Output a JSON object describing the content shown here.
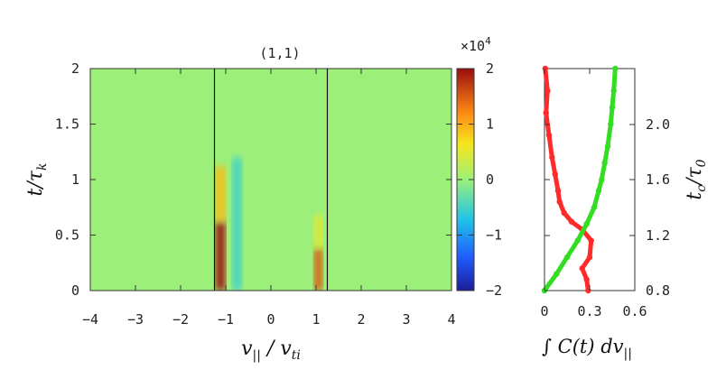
{
  "chart_data": [
    {
      "type": "heatmap",
      "title": "(1,1)",
      "xlabel_main": "v",
      "xlabel_main_sub": "||",
      "xlabel_div": " / v",
      "xlabel_div_sub": "ti",
      "ylabel_main": "t/τ",
      "ylabel_sub": "k",
      "xlim": [
        -4,
        4
      ],
      "ylim": [
        0,
        2
      ],
      "xticks": [
        "−4",
        "−3",
        "−2",
        "−1",
        "0",
        "1",
        "2",
        "3",
        "4"
      ],
      "yticks": [
        "0",
        "0.5",
        "1",
        "1.5",
        "2"
      ],
      "vlines_x": [
        -1.25,
        1.25
      ],
      "background_value": 0,
      "features": [
        {
          "x": -1.12,
          "y": 0.0,
          "w": 0.22,
          "h": 0.62,
          "value": 2.0
        },
        {
          "x": -1.12,
          "y": 0.62,
          "w": 0.22,
          "h": 0.5,
          "value": 0.9
        },
        {
          "x": -0.75,
          "y": 0.0,
          "w": 0.22,
          "h": 1.2,
          "value": -0.5
        },
        {
          "x": 1.05,
          "y": 0.0,
          "w": 0.2,
          "h": 0.38,
          "value": 1.5
        },
        {
          "x": 1.05,
          "y": 0.38,
          "w": 0.2,
          "h": 0.3,
          "value": 0.5
        }
      ],
      "colorbar": {
        "multiplier": "×10",
        "multiplier_exp": "4",
        "ticks": [
          "2",
          "1",
          "0",
          "−1",
          "−2"
        ],
        "range": [
          -2,
          2
        ]
      }
    },
    {
      "type": "line",
      "xlim": [
        0,
        0.6
      ],
      "xticks": [
        "0",
        "0.3",
        "0.6"
      ],
      "right_yticks": [
        "2.0",
        "1.6",
        "1.2",
        "0.8"
      ],
      "right_ylabel_main": "t",
      "right_ylabel_sub": "c",
      "right_ylabel_div": "/τ",
      "right_ylabel_sub2": "0",
      "xlabel_main": "∫ C(t) dv",
      "xlabel_sub": "||",
      "series": [
        {
          "color": "#ff2a2a",
          "x": [
            0.29,
            0.28,
            0.25,
            0.3,
            0.31,
            0.25,
            0.18,
            0.13,
            0.1,
            0.09,
            0.07,
            0.05,
            0.03,
            0.01,
            0.02,
            0.005
          ],
          "y": [
            0.0,
            0.1,
            0.2,
            0.3,
            0.45,
            0.55,
            0.62,
            0.7,
            0.8,
            0.9,
            1.05,
            1.2,
            1.4,
            1.6,
            1.8,
            2.0
          ]
        },
        {
          "color": "#33dd22",
          "x": [
            0.0,
            0.08,
            0.15,
            0.22,
            0.28,
            0.33,
            0.36,
            0.38,
            0.4,
            0.42,
            0.44,
            0.45,
            0.46,
            0.47
          ],
          "y": [
            0.0,
            0.15,
            0.3,
            0.45,
            0.6,
            0.75,
            0.9,
            1.0,
            1.15,
            1.3,
            1.5,
            1.65,
            1.8,
            2.0
          ]
        }
      ]
    }
  ]
}
